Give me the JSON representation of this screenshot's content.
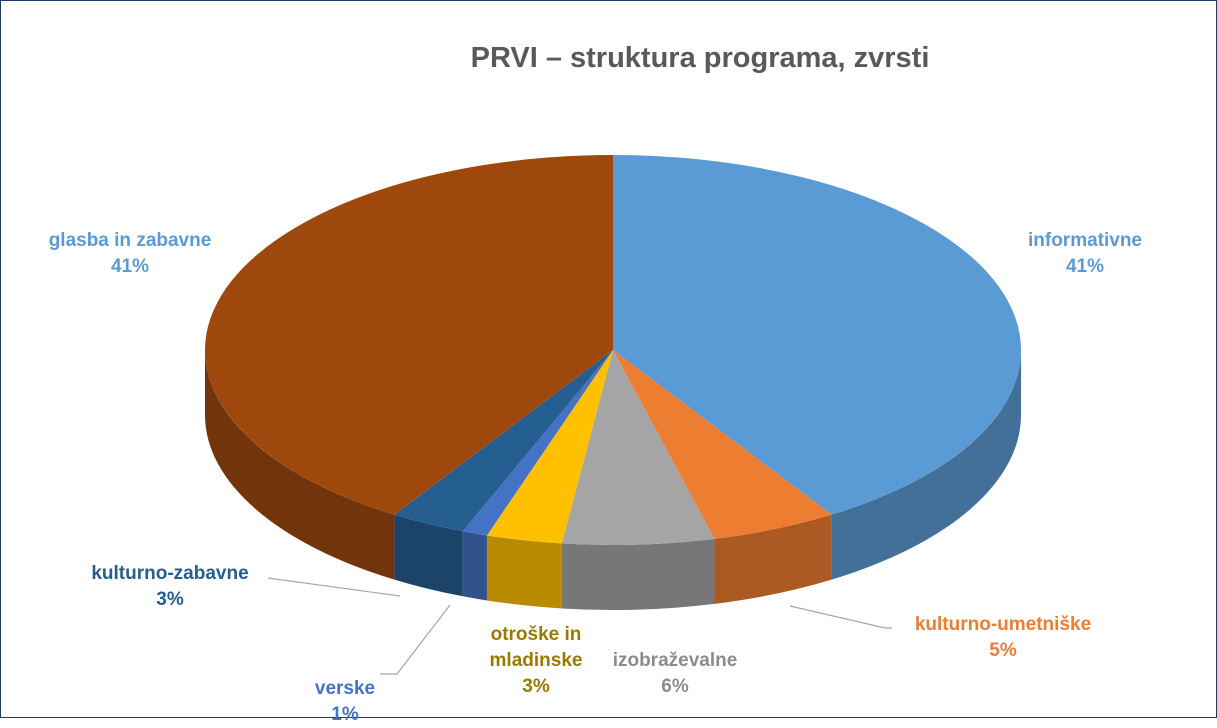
{
  "chart_data": {
    "type": "pie",
    "title": "PRVI – struktura programa, zvrsti",
    "categories": [
      "informativne",
      "kulturno-umetniške",
      "izobraževalne",
      "otroške in mladinske",
      "verske",
      "kulturno-zabavne",
      "glasba in zabavne"
    ],
    "values": [
      41,
      5,
      6,
      3,
      1,
      3,
      41
    ],
    "value_labels": [
      "41%",
      "5%",
      "6%",
      "3%",
      "1%",
      "3%",
      "41%"
    ],
    "colors": [
      "#5b9bd5",
      "#ed7d31",
      "#a5a5a5",
      "#ffc000",
      "#4472c4",
      "#255e91",
      "#9e480e"
    ]
  }
}
